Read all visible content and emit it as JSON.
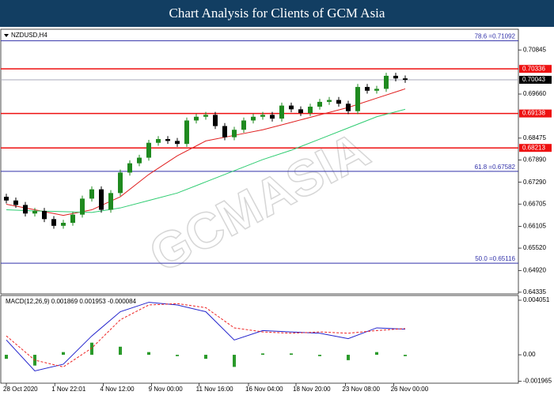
{
  "header": {
    "title": "Chart Analysis for Clients of GCM Asia"
  },
  "chart_data": {
    "type": "candlestick",
    "symbol": "NZDUSD,H4",
    "watermark": "GCMASIA",
    "bull_color": "#1f8a1f",
    "bear_color": "#000000",
    "candles": [
      [
        0.669,
        0.6698,
        0.6672,
        0.668
      ],
      [
        0.668,
        0.6688,
        0.666,
        0.6668
      ],
      [
        0.6668,
        0.6676,
        0.6637,
        0.6645
      ],
      [
        0.6645,
        0.666,
        0.6637,
        0.6652
      ],
      [
        0.6652,
        0.666,
        0.6622,
        0.663
      ],
      [
        0.663,
        0.6638,
        0.6604,
        0.6612
      ],
      [
        0.6612,
        0.6628,
        0.6604,
        0.662
      ],
      [
        0.662,
        0.665,
        0.6612,
        0.6642
      ],
      [
        0.6642,
        0.6693,
        0.6634,
        0.6685
      ],
      [
        0.6685,
        0.6718,
        0.6677,
        0.671
      ],
      [
        0.671,
        0.6718,
        0.6647,
        0.6655
      ],
      [
        0.6655,
        0.6708,
        0.6647,
        0.67
      ],
      [
        0.67,
        0.6763,
        0.6692,
        0.6755
      ],
      [
        0.6755,
        0.6788,
        0.6747,
        0.678
      ],
      [
        0.678,
        0.6803,
        0.6772,
        0.6795
      ],
      [
        0.6795,
        0.6843,
        0.6787,
        0.6835
      ],
      [
        0.6835,
        0.6853,
        0.6827,
        0.6845
      ],
      [
        0.6845,
        0.6853,
        0.6832,
        0.684
      ],
      [
        0.684,
        0.6848,
        0.6824,
        0.6832
      ],
      [
        0.6832,
        0.6903,
        0.6824,
        0.6895
      ],
      [
        0.6895,
        0.6913,
        0.6887,
        0.6905
      ],
      [
        0.6905,
        0.6918,
        0.6897,
        0.691
      ],
      [
        0.691,
        0.6918,
        0.6872,
        0.688
      ],
      [
        0.688,
        0.6888,
        0.6842,
        0.685
      ],
      [
        0.685,
        0.6878,
        0.6842,
        0.687
      ],
      [
        0.687,
        0.6903,
        0.6862,
        0.6895
      ],
      [
        0.6895,
        0.6913,
        0.6887,
        0.6905
      ],
      [
        0.6905,
        0.6918,
        0.6897,
        0.691
      ],
      [
        0.691,
        0.6918,
        0.6892,
        0.69
      ],
      [
        0.69,
        0.6943,
        0.6892,
        0.6935
      ],
      [
        0.6935,
        0.6943,
        0.6917,
        0.6925
      ],
      [
        0.6925,
        0.6933,
        0.6907,
        0.6915
      ],
      [
        0.6915,
        0.694,
        0.6907,
        0.6932
      ],
      [
        0.6932,
        0.6953,
        0.6924,
        0.6945
      ],
      [
        0.6945,
        0.6958,
        0.6937,
        0.695
      ],
      [
        0.695,
        0.6958,
        0.6932,
        0.694
      ],
      [
        0.694,
        0.6948,
        0.6912,
        0.692
      ],
      [
        0.692,
        0.6993,
        0.6912,
        0.6985
      ],
      [
        0.6985,
        0.6993,
        0.6967,
        0.6975
      ],
      [
        0.6975,
        0.6988,
        0.6967,
        0.698
      ],
      [
        0.698,
        0.7023,
        0.6972,
        0.7015
      ],
      [
        0.7015,
        0.7023,
        0.7,
        0.7008
      ],
      [
        0.7008,
        0.7016,
        0.6996,
        0.7004
      ]
    ],
    "ma_x": [
      0,
      3,
      6,
      9,
      12,
      15,
      18,
      21,
      24,
      27,
      30,
      33,
      36,
      39,
      42
    ],
    "moving_averages": [
      {
        "color": "#e02020",
        "values": [
          0.667,
          0.6655,
          0.664,
          0.6655,
          0.669,
          0.675,
          0.68,
          0.684,
          0.6855,
          0.687,
          0.689,
          0.691,
          0.693,
          0.6955,
          0.698
        ]
      },
      {
        "color": "#2ecc71",
        "values": [
          0.6655,
          0.6652,
          0.665,
          0.6648,
          0.666,
          0.668,
          0.67,
          0.673,
          0.676,
          0.679,
          0.6815,
          0.6845,
          0.6875,
          0.6905,
          0.6925
        ]
      }
    ],
    "ylim": [
      0.6429,
      0.7138
    ],
    "yticks": [
      {
        "value": 0.70845,
        "label": "0.70845"
      },
      {
        "value": 0.6966,
        "label": "0.69660"
      },
      {
        "value": 0.68475,
        "label": "0.68475"
      },
      {
        "value": 0.6789,
        "label": "0.67890"
      },
      {
        "value": 0.6729,
        "label": "0.67290"
      },
      {
        "value": 0.66705,
        "label": "0.66705"
      },
      {
        "value": 0.66105,
        "label": "0.66105"
      },
      {
        "value": 0.6552,
        "label": "0.65520"
      },
      {
        "value": 0.6492,
        "label": "0.64920"
      },
      {
        "value": 0.64335,
        "label": "0.64335"
      }
    ],
    "levels": [
      {
        "value": 0.71092,
        "label": "78.6 =0.71092",
        "color": "#3333aa",
        "label_style": "text"
      },
      {
        "value": 0.70336,
        "label": "0.70336",
        "color": "#ee1111",
        "label_style": "box"
      },
      {
        "value": 0.70043,
        "label": "0.70043",
        "color": "#000000",
        "label_style": "box"
      },
      {
        "value": 0.69138,
        "label": "0.69138",
        "color": "#ee1111",
        "label_style": "box"
      },
      {
        "value": 0.68213,
        "label": "0.68213",
        "color": "#ee1111",
        "label_style": "box"
      },
      {
        "value": 0.67582,
        "label": "61.8 =0.67582",
        "color": "#3333aa",
        "label_style": "text"
      },
      {
        "value": 0.65116,
        "label": "50.0 =0.65116",
        "color": "#3333aa",
        "label_style": "text"
      }
    ],
    "xticks": [
      {
        "value": 0,
        "label": "28 Oct 2020"
      },
      {
        "value": 5.1,
        "label": "1 Nov 22:01"
      },
      {
        "value": 10.2,
        "label": "4 Nov 12:00"
      },
      {
        "value": 15.3,
        "label": "9 Nov 00:00"
      },
      {
        "value": 20.3,
        "label": "11 Nov 16:00"
      },
      {
        "value": 25.5,
        "label": "16 Nov 04:00"
      },
      {
        "value": 30.5,
        "label": "18 Nov 20:00"
      },
      {
        "value": 35.7,
        "label": "23 Nov 08:00"
      },
      {
        "value": 40.8,
        "label": "26 Nov 00:00"
      }
    ],
    "macd": {
      "label": "MACD(12,26,9) 0.001869 0.001953 -0.000084",
      "ylim": [
        -0.00211,
        0.004345
      ],
      "yticks": [
        {
          "value": 0.004051,
          "label": "0.004051"
        },
        {
          "value": 0,
          "label": "0.00"
        },
        {
          "value": -0.001965,
          "label": "-0.001965"
        }
      ],
      "series": [
        {
          "color": "#2222cc",
          "dash": false,
          "values": [
            0.0011,
            -0.0012,
            -0.0007,
            0.0014,
            0.0032,
            0.0039,
            0.0037,
            0.0032,
            0.0011,
            0.0018,
            0.0017,
            0.0016,
            0.0012,
            0.002,
            0.0019
          ]
        },
        {
          "color": "#ee2222",
          "dash": true,
          "values": [
            0.0014,
            -0.0004,
            -0.0009,
            0.0005,
            0.0026,
            0.0037,
            0.0038,
            0.0035,
            0.002,
            0.0017,
            0.0016,
            0.0017,
            0.0016,
            0.0018,
            0.00195
          ]
        }
      ],
      "histogram_color": "#2a9a2a",
      "histogram": [
        -0.0003,
        -0.0008,
        0.0002,
        0.0009,
        0.0006,
        0.0002,
        -0.0001,
        -0.0003,
        -0.0009,
        0.0001,
        0.0001,
        -0.0001,
        -0.0004,
        0.0002,
        -0.0001
      ]
    }
  }
}
